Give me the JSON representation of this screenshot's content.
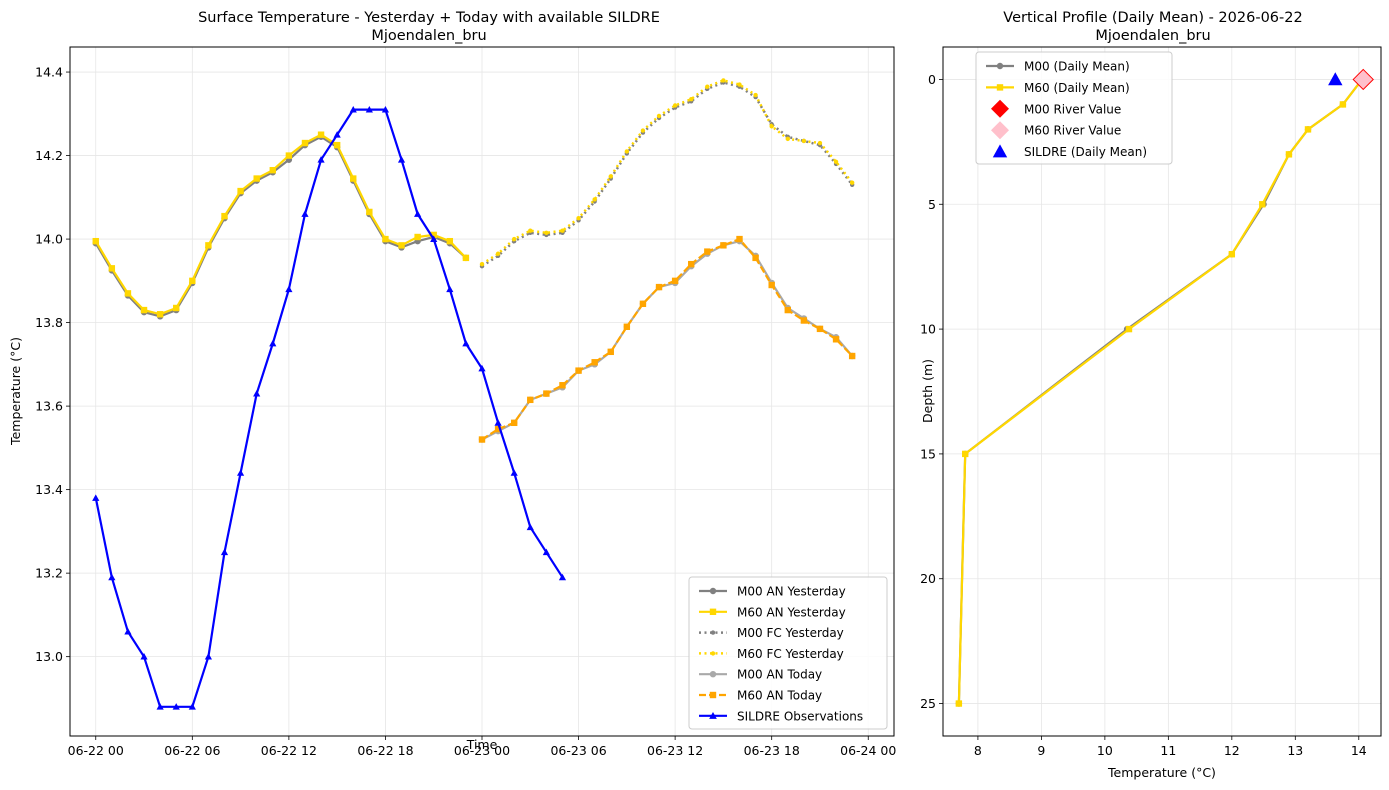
{
  "chart_data": [
    {
      "type": "line",
      "title": "Surface Temperature - Yesterday + Today with available SILDRE",
      "subtitle": "Mjoendalen_bru",
      "xlabel": "Time",
      "ylabel": "Temperature (°C)",
      "x_unit": "hours since 06-22 00",
      "xlim": [
        -1.6,
        49.6
      ],
      "ylim": [
        12.81,
        14.46
      ],
      "xticks": [
        0,
        6,
        12,
        18,
        24,
        30,
        36,
        42,
        48
      ],
      "xtick_labels": [
        "06-22 00",
        "06-22 06",
        "06-22 12",
        "06-22 18",
        "06-23 00",
        "06-23 06",
        "06-23 12",
        "06-23 18",
        "06-24 00"
      ],
      "yticks": [
        13.0,
        13.2,
        13.4,
        13.6,
        13.8,
        14.0,
        14.2,
        14.4
      ],
      "ytick_labels": [
        "13.0",
        "13.2",
        "13.4",
        "13.6",
        "13.8",
        "14.0",
        "14.2",
        "14.4"
      ],
      "grid": true,
      "legend_position": "lower-right",
      "series": [
        {
          "name": "M00 AN Yesterday",
          "color": "#808080",
          "style": "solid",
          "marker": "circle",
          "x": [
            0,
            1,
            2,
            3,
            4,
            5,
            6,
            7,
            8,
            9,
            10,
            11,
            12,
            13,
            14,
            15,
            16,
            17,
            18,
            19,
            20,
            21,
            22,
            23
          ],
          "y": [
            13.99,
            13.925,
            13.865,
            13.825,
            13.815,
            13.83,
            13.895,
            13.98,
            14.05,
            14.11,
            14.14,
            14.16,
            14.19,
            14.225,
            14.245,
            14.22,
            14.14,
            14.06,
            13.995,
            13.98,
            13.995,
            14.005,
            13.99,
            13.955
          ]
        },
        {
          "name": "M60 AN Yesterday",
          "color": "#FFD700",
          "style": "solid",
          "marker": "square",
          "x": [
            0,
            1,
            2,
            3,
            4,
            5,
            6,
            7,
            8,
            9,
            10,
            11,
            12,
            13,
            14,
            15,
            16,
            17,
            18,
            19,
            20,
            21,
            22,
            23
          ],
          "y": [
            13.995,
            13.93,
            13.87,
            13.83,
            13.82,
            13.835,
            13.9,
            13.985,
            14.055,
            14.115,
            14.145,
            14.165,
            14.2,
            14.23,
            14.25,
            14.225,
            14.145,
            14.065,
            14.0,
            13.985,
            14.005,
            14.01,
            13.995,
            13.955
          ]
        },
        {
          "name": "M00 FC Yesterday",
          "color": "#808080",
          "style": "dotted",
          "marker": "circle",
          "x": [
            24,
            25,
            26,
            27,
            28,
            29,
            30,
            31,
            32,
            33,
            34,
            35,
            36,
            37,
            38,
            39,
            40,
            41,
            42,
            43,
            44,
            45,
            46,
            47
          ],
          "y": [
            13.935,
            13.96,
            13.995,
            14.015,
            14.01,
            14.015,
            14.045,
            14.09,
            14.145,
            14.205,
            14.255,
            14.29,
            14.315,
            14.33,
            14.36,
            14.375,
            14.365,
            14.34,
            14.275,
            14.245,
            14.235,
            14.225,
            14.18,
            14.13
          ]
        },
        {
          "name": "M60 FC Yesterday",
          "color": "#FFD700",
          "style": "dotted",
          "marker": "circle",
          "x": [
            24,
            25,
            26,
            27,
            28,
            29,
            30,
            31,
            32,
            33,
            34,
            35,
            36,
            37,
            38,
            39,
            40,
            41,
            42,
            43,
            44,
            45,
            46,
            47
          ],
          "y": [
            13.94,
            13.965,
            14.0,
            14.02,
            14.015,
            14.02,
            14.05,
            14.095,
            14.15,
            14.21,
            14.26,
            14.295,
            14.32,
            14.335,
            14.365,
            14.38,
            14.37,
            14.345,
            14.27,
            14.24,
            14.235,
            14.23,
            14.185,
            14.135
          ]
        },
        {
          "name": "M00 AN Today",
          "color": "#A9A9A9",
          "style": "solid",
          "marker": "circle",
          "x": [
            24,
            25,
            26,
            27,
            28,
            29,
            30,
            31,
            32,
            33,
            34,
            35,
            36,
            37,
            38,
            39,
            40,
            41,
            42,
            43,
            44,
            45,
            46,
            47
          ],
          "y": [
            13.52,
            13.54,
            13.56,
            13.615,
            13.63,
            13.645,
            13.685,
            13.7,
            13.73,
            13.79,
            13.845,
            13.885,
            13.895,
            13.935,
            13.965,
            13.985,
            13.995,
            13.96,
            13.895,
            13.835,
            13.81,
            13.785,
            13.765,
            13.72
          ]
        },
        {
          "name": "M60 AN Today",
          "color": "#FFA500",
          "style": "dashed",
          "marker": "square",
          "x": [
            24,
            25,
            26,
            27,
            28,
            29,
            30,
            31,
            32,
            33,
            34,
            35,
            36,
            37,
            38,
            39,
            40,
            41,
            42,
            43,
            44,
            45,
            46,
            47
          ],
          "y": [
            13.52,
            13.545,
            13.56,
            13.615,
            13.63,
            13.65,
            13.685,
            13.705,
            13.73,
            13.79,
            13.845,
            13.885,
            13.9,
            13.94,
            13.97,
            13.985,
            14.0,
            13.955,
            13.89,
            13.83,
            13.805,
            13.785,
            13.76,
            13.72
          ]
        },
        {
          "name": "SILDRE Observations",
          "color": "#0000FF",
          "style": "solid",
          "marker": "triangle",
          "x": [
            0,
            1,
            2,
            3,
            4,
            5,
            6,
            7,
            8,
            9,
            10,
            11,
            12,
            13,
            14,
            15,
            16,
            17,
            18,
            19,
            20,
            21,
            22,
            23,
            24,
            25,
            26,
            27,
            28,
            29
          ],
          "y": [
            13.38,
            13.19,
            13.06,
            13.0,
            12.88,
            12.88,
            12.88,
            13.0,
            13.25,
            13.44,
            13.63,
            13.75,
            13.88,
            14.06,
            14.19,
            14.25,
            14.31,
            14.31,
            14.31,
            14.19,
            14.06,
            14.0,
            13.88,
            13.75,
            13.69,
            13.56,
            13.44,
            13.31,
            13.25,
            13.19
          ]
        }
      ]
    },
    {
      "type": "line",
      "title": "Vertical Profile (Daily Mean) - 2026-06-22",
      "subtitle": "Mjoendalen_bru",
      "xlabel": "Temperature (°C)",
      "ylabel": "Depth (m)",
      "xlim": [
        7.45,
        14.35
      ],
      "ylim": [
        26.3,
        -1.3
      ],
      "y_inverted": true,
      "xticks": [
        8,
        9,
        10,
        11,
        12,
        13,
        14
      ],
      "xtick_labels": [
        "8",
        "9",
        "10",
        "11",
        "12",
        "13",
        "14"
      ],
      "yticks": [
        0,
        5,
        10,
        15,
        20,
        25
      ],
      "ytick_labels": [
        "0",
        "5",
        "10",
        "15",
        "20",
        "25"
      ],
      "grid": true,
      "legend_position": "top-left",
      "series": [
        {
          "name": "M00 (Daily Mean)",
          "color": "#808080",
          "style": "solid",
          "marker": "circle",
          "x": [
            14.05,
            13.75,
            13.2,
            12.9,
            12.5,
            12.0,
            10.35,
            7.8,
            7.7
          ],
          "y": [
            0,
            1,
            2,
            3,
            5,
            7,
            10,
            15,
            25
          ]
        },
        {
          "name": "M60 (Daily Mean)",
          "color": "#FFD700",
          "style": "solid",
          "marker": "square",
          "x": [
            14.05,
            13.75,
            13.2,
            12.9,
            12.48,
            12.0,
            10.38,
            7.8,
            7.7
          ],
          "y": [
            0,
            1,
            2,
            3,
            5,
            7,
            10,
            15,
            25
          ]
        },
        {
          "name": "M00 River Value",
          "color": "#FF0000",
          "style": "none",
          "marker": "diamond",
          "x": [
            14.07
          ],
          "y": [
            0
          ]
        },
        {
          "name": "M60 River Value",
          "color": "#FFC0CB",
          "style": "none",
          "marker": "diamond",
          "x": [
            14.07
          ],
          "y": [
            0
          ]
        },
        {
          "name": "SILDRE (Daily Mean)",
          "color": "#0000FF",
          "style": "none",
          "marker": "triangle",
          "x": [
            13.63
          ],
          "y": [
            0
          ]
        }
      ]
    }
  ]
}
